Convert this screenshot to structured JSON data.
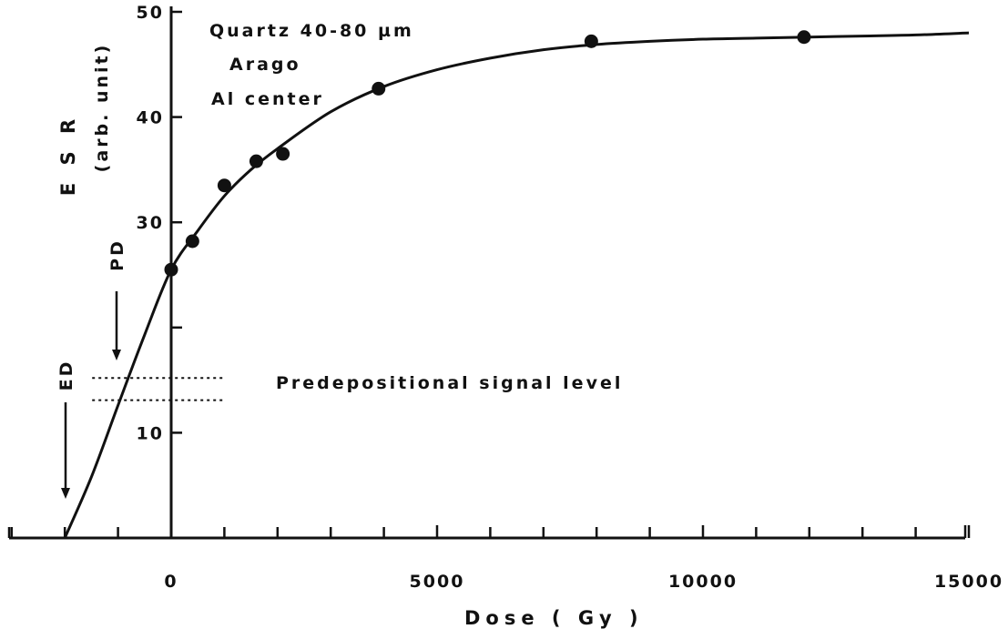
{
  "chart_data": {
    "type": "scatter",
    "title": "Quartz 40-80 µm",
    "subtitle_lines": [
      "Arago",
      "Al center"
    ],
    "xlabel": "Dose  ( Gy )",
    "ylabel": "E S R",
    "ylabel_unit": "(arb. unit)",
    "xlim": [
      -2000,
      15000
    ],
    "ylim": [
      0,
      50
    ],
    "x_ticks": [
      0,
      5000,
      10000,
      15000
    ],
    "x_tick_labels": [
      "0",
      "5000",
      "10000",
      "15000"
    ],
    "x_minor_ticks": [
      -3000,
      -2000,
      -1000,
      1000,
      2000,
      3000,
      4000,
      6000,
      7000,
      8000,
      9000,
      11000,
      12000,
      13000,
      14000
    ],
    "y_ticks": [
      10,
      20,
      30,
      40,
      50
    ],
    "y_tick_labels": [
      "10",
      "",
      "30",
      "40",
      "50"
    ],
    "grid": false,
    "series": [
      {
        "points": [
          {
            "x": 0,
            "y": 25.5
          },
          {
            "x": 400,
            "y": 28.2
          },
          {
            "x": 1000,
            "y": 33.5
          },
          {
            "x": 1600,
            "y": 35.8
          },
          {
            "x": 2100,
            "y": 36.5
          },
          {
            "x": 3900,
            "y": 42.7
          },
          {
            "x": 7900,
            "y": 47.2
          },
          {
            "x": 11900,
            "y": 47.6
          }
        ]
      }
    ],
    "fit_curve": {
      "model": "saturating exponential",
      "x": [
        -2000,
        -1500,
        -1000,
        -500,
        0,
        500,
        1000,
        1500,
        2000,
        3000,
        4000,
        5000,
        6000,
        7000,
        8000,
        9000,
        10000,
        11000,
        12000,
        13000,
        14000,
        15000
      ],
      "y": [
        0,
        5.8,
        12.6,
        19.3,
        25.5,
        29.2,
        32.5,
        35.0,
        37.0,
        40.5,
        42.9,
        44.5,
        45.6,
        46.4,
        46.9,
        47.2,
        47.4,
        47.5,
        47.6,
        47.7,
        47.8,
        48.0
      ]
    },
    "reference_lines": [
      {
        "label": "Predepositional signal level",
        "y": [
          15.2,
          13.1
        ],
        "x_range": [
          -2000,
          1000
        ]
      }
    ],
    "markers": [
      {
        "label": "PD",
        "x": -1000
      },
      {
        "label": "ED",
        "x": -2000
      }
    ]
  }
}
